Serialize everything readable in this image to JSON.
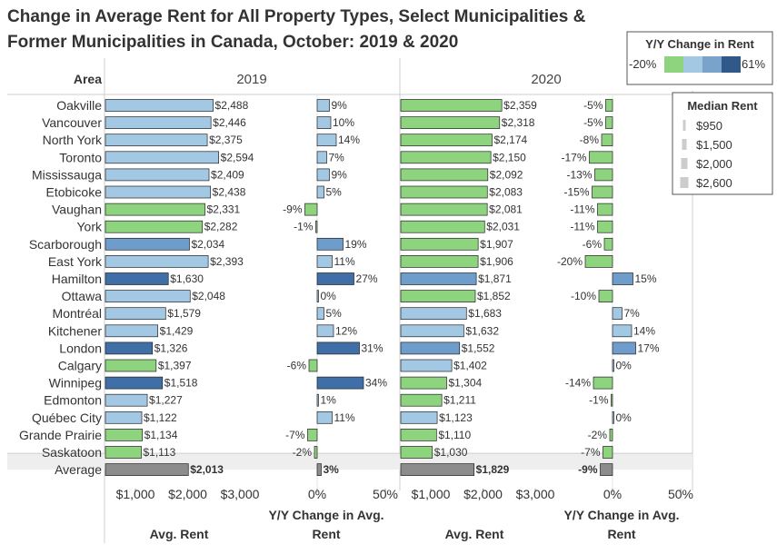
{
  "chart_data": {
    "type": "bar",
    "title_line1": "Change in Average Rent for All Property Types, Select Municipalities &",
    "title_line2": "Former Municipalities in Canada, October: 2019 & 2020",
    "area_header": "Area",
    "years": [
      "2019",
      "2020"
    ],
    "categories": [
      "Oakville",
      "Vancouver",
      "North York",
      "Toronto",
      "Mississauga",
      "Etobicoke",
      "Vaughan",
      "York",
      "Scarborough",
      "East York",
      "Hamilton",
      "Ottawa",
      "Montréal",
      "Kitchener",
      "London",
      "Calgary",
      "Winnipeg",
      "Edmonton",
      "Québec City",
      "Grande Prairie",
      "Saskatoon",
      "Average"
    ],
    "series": [
      {
        "name": "2019 Avg. Rent",
        "values": [
          2488,
          2446,
          2375,
          2594,
          2409,
          2438,
          2331,
          2282,
          2034,
          2393,
          1630,
          2048,
          1579,
          1429,
          1326,
          1397,
          1518,
          1227,
          1122,
          1134,
          1113,
          2013
        ],
        "labels": [
          "$2,488",
          "$2,446",
          "$2,375",
          "$2,594",
          "$2,409",
          "$2,438",
          "$2,331",
          "$2,282",
          "$2,034",
          "$2,393",
          "$1,630",
          "$2,048",
          "$1,579",
          "$1,429",
          "$1,326",
          "$1,397",
          "$1,518",
          "$1,227",
          "$1,122",
          "$1,134",
          "$1,113",
          "$2,013"
        ]
      },
      {
        "name": "2019 Y/Y Change in Avg. Rent",
        "values": [
          9,
          10,
          14,
          7,
          9,
          5,
          -9,
          -1,
          19,
          11,
          27,
          0,
          5,
          12,
          31,
          -6,
          34,
          1,
          11,
          -7,
          -2,
          3
        ],
        "labels": [
          "9%",
          "10%",
          "14%",
          "7%",
          "9%",
          "5%",
          "-9%",
          "-1%",
          "19%",
          "11%",
          "27%",
          "0%",
          "5%",
          "12%",
          "31%",
          "-6%",
          "34%",
          "1%",
          "11%",
          "-7%",
          "-2%",
          "3%"
        ]
      },
      {
        "name": "2020 Avg. Rent",
        "values": [
          2359,
          2318,
          2174,
          2150,
          2092,
          2083,
          2081,
          2031,
          1907,
          1906,
          1871,
          1852,
          1683,
          1632,
          1552,
          1402,
          1304,
          1211,
          1123,
          1110,
          1030,
          1829
        ],
        "labels": [
          "$2,359",
          "$2,318",
          "$2,174",
          "$2,150",
          "$2,092",
          "$2,083",
          "$2,081",
          "$2,031",
          "$1,907",
          "$1,906",
          "$1,871",
          "$1,852",
          "$1,683",
          "$1,632",
          "$1,552",
          "$1,402",
          "$1,304",
          "$1,211",
          "$1,123",
          "$1,110",
          "$1,030",
          "$1,829"
        ]
      },
      {
        "name": "2020 Y/Y Change in Avg. Rent",
        "values": [
          -5,
          -5,
          -8,
          -17,
          -13,
          -15,
          -11,
          -11,
          -6,
          -20,
          15,
          -10,
          7,
          14,
          17,
          0,
          -14,
          -1,
          0,
          -2,
          -7,
          -9
        ],
        "labels": [
          "-5%",
          "-5%",
          "-8%",
          "-17%",
          "-13%",
          "-15%",
          "-11%",
          "-11%",
          "-6%",
          "-20%",
          "15%",
          "-10%",
          "7%",
          "14%",
          "17%",
          "0%",
          "-14%",
          "-1%",
          "0%",
          "-2%",
          "-7%",
          "-9%"
        ]
      }
    ],
    "rent_axis": {
      "ticks": [
        1000,
        2000,
        3000
      ],
      "tick_labels": [
        "$1,000",
        "$2,000",
        "$3,000"
      ],
      "label": "Avg. Rent"
    },
    "change_axis": {
      "ticks": [
        0,
        50
      ],
      "tick_labels": [
        "0%",
        "50%"
      ],
      "label_line1": "Y/Y Change in Avg.",
      "label_line2": "Rent"
    },
    "color_legend": {
      "title": "Y/Y Change in Rent",
      "min_label": "-20%",
      "max_label": "61%",
      "colors": [
        "#8ed47e",
        "#a3c8e4",
        "#7aa3cc",
        "#30598a"
      ]
    },
    "size_legend": {
      "title": "Median Rent",
      "labels": [
        "$950",
        "$1,500",
        "$2,000",
        "$2,600"
      ]
    },
    "colors": {
      "green": "#8ed47e",
      "light_blue": "#a3c8e4",
      "mid_blue": "#6e9ccb",
      "dark_blue": "#3f6fa6",
      "average": "#8c8c8c",
      "stroke": "#222222"
    }
  }
}
